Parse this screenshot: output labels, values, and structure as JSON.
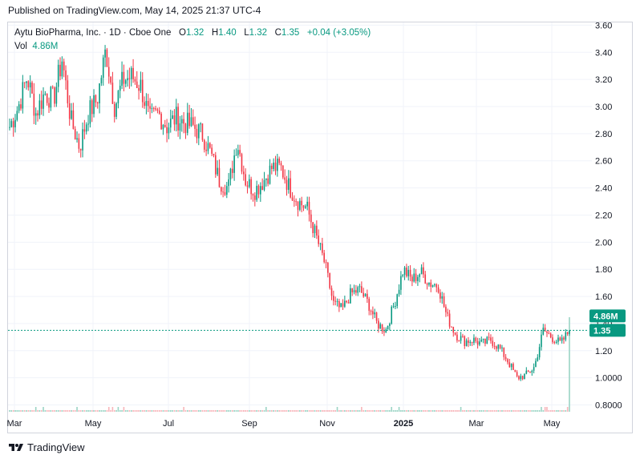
{
  "header": {
    "published": "Published on TradingView.com, May 14, 2025 21:37 UTC-4"
  },
  "legend": {
    "symbol": "Aytu BioPharma, Inc. · 1D · Cboe One",
    "open_label": "O",
    "open": "1.32",
    "high_label": "H",
    "high": "1.40",
    "low_label": "L",
    "low": "1.32",
    "close_label": "C",
    "close": "1.35",
    "change": "+0.04 (+3.05%)",
    "vol_label": "Vol",
    "vol_value": "4.86M"
  },
  "badges": {
    "volume": "4.86M",
    "price": "1.35"
  },
  "footer": {
    "brand": "TradingView"
  },
  "colors": {
    "up": "#089981",
    "down": "#f23645",
    "grid": "#f0f3fa",
    "price_line": "#089981"
  },
  "chart_data": {
    "type": "candlestick",
    "y_ticks": [
      "3.60",
      "3.40",
      "3.20",
      "3.00",
      "2.80",
      "2.60",
      "2.40",
      "2.20",
      "2.00",
      "1.80",
      "1.60",
      "1.40",
      "1.20",
      "1.0000",
      "0.8000"
    ],
    "x_ticks": [
      {
        "label": "Mar",
        "bold": false
      },
      {
        "label": "May",
        "bold": false
      },
      {
        "label": "Jul",
        "bold": false
      },
      {
        "label": "Sep",
        "bold": false
      },
      {
        "label": "Nov",
        "bold": false
      },
      {
        "label": "2025",
        "bold": true
      },
      {
        "label": "Mar",
        "bold": false
      },
      {
        "label": "May",
        "bold": false
      }
    ],
    "ylim": [
      0.75,
      3.62
    ],
    "last_price": 1.35,
    "price_path": [
      [
        "2024-02-20",
        2.85
      ],
      [
        "2024-02-27",
        3.0
      ],
      [
        "2024-03-05",
        3.22
      ],
      [
        "2024-03-12",
        2.95
      ],
      [
        "2024-03-19",
        3.1
      ],
      [
        "2024-03-26",
        3.05
      ],
      [
        "2024-04-02",
        3.35
      ],
      [
        "2024-04-09",
        2.9
      ],
      [
        "2024-04-16",
        2.7
      ],
      [
        "2024-04-23",
        2.95
      ],
      [
        "2024-04-30",
        3.05
      ],
      [
        "2024-05-07",
        3.42
      ],
      [
        "2024-05-14",
        3.0
      ],
      [
        "2024-05-21",
        3.2
      ],
      [
        "2024-05-28",
        3.22
      ],
      [
        "2024-06-04",
        3.15
      ],
      [
        "2024-06-11",
        2.9
      ],
      [
        "2024-06-18",
        2.95
      ],
      [
        "2024-06-25",
        2.85
      ],
      [
        "2024-07-02",
        2.92
      ],
      [
        "2024-07-09",
        2.88
      ],
      [
        "2024-07-16",
        2.85
      ],
      [
        "2024-07-23",
        2.8
      ],
      [
        "2024-07-30",
        2.65
      ],
      [
        "2024-08-06",
        2.45
      ],
      [
        "2024-08-13",
        2.4
      ],
      [
        "2024-08-20",
        2.75
      ],
      [
        "2024-08-27",
        2.45
      ],
      [
        "2024-09-03",
        2.38
      ],
      [
        "2024-09-10",
        2.45
      ],
      [
        "2024-09-17",
        2.55
      ],
      [
        "2024-09-24",
        2.55
      ],
      [
        "2024-10-01",
        2.4
      ],
      [
        "2024-10-08",
        2.3
      ],
      [
        "2024-10-15",
        2.25
      ],
      [
        "2024-10-22",
        2.05
      ],
      [
        "2024-10-29",
        1.85
      ],
      [
        "2024-11-05",
        1.55
      ],
      [
        "2024-11-12",
        1.5
      ],
      [
        "2024-11-19",
        1.62
      ],
      [
        "2024-11-26",
        1.65
      ],
      [
        "2024-12-03",
        1.55
      ],
      [
        "2024-12-10",
        1.4
      ],
      [
        "2024-12-17",
        1.35
      ],
      [
        "2024-12-24",
        1.55
      ],
      [
        "2024-12-31",
        1.8
      ],
      [
        "2025-01-07",
        1.72
      ],
      [
        "2025-01-14",
        1.78
      ],
      [
        "2025-01-21",
        1.7
      ],
      [
        "2025-01-28",
        1.68
      ],
      [
        "2025-02-04",
        1.45
      ],
      [
        "2025-02-11",
        1.32
      ],
      [
        "2025-02-18",
        1.27
      ],
      [
        "2025-02-25",
        1.28
      ],
      [
        "2025-03-04",
        1.25
      ],
      [
        "2025-03-11",
        1.28
      ],
      [
        "2025-03-18",
        1.22
      ],
      [
        "2025-03-25",
        1.12
      ],
      [
        "2025-04-01",
        1.0
      ],
      [
        "2025-04-08",
        1.02
      ],
      [
        "2025-04-15",
        1.08
      ],
      [
        "2025-04-22",
        1.35
      ],
      [
        "2025-04-29",
        1.3
      ],
      [
        "2025-05-06",
        1.25
      ],
      [
        "2025-05-13",
        1.35
      ]
    ]
  }
}
